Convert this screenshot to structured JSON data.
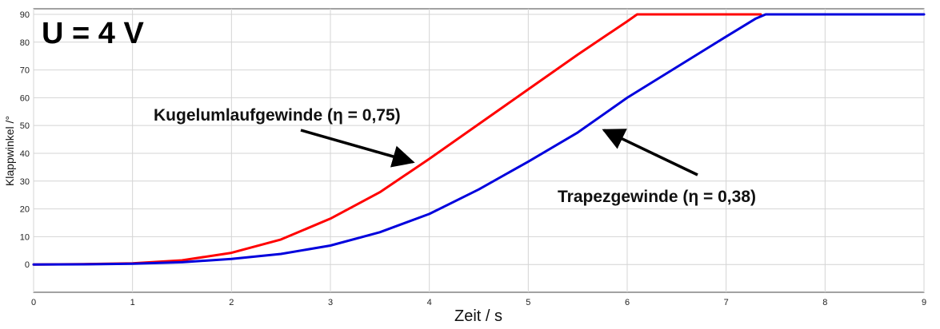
{
  "chart_data": {
    "type": "line",
    "title": "U = 4 V",
    "xlabel": "Zeit / s",
    "ylabel": "Klappwinkel /°",
    "xlim": [
      0,
      9
    ],
    "ylim": [
      -10,
      92
    ],
    "xticks": [
      0,
      1,
      2,
      3,
      4,
      5,
      6,
      7,
      8,
      9
    ],
    "yticks": [
      0,
      10,
      20,
      30,
      40,
      50,
      60,
      70,
      80,
      90
    ],
    "grid": true,
    "series": [
      {
        "name": "Kugelumlaufgewinde (η = 0,75)",
        "color": "#ff0000",
        "x": [
          0,
          0.5,
          1.0,
          1.5,
          2.0,
          2.5,
          3.0,
          3.5,
          4.0,
          4.5,
          5.0,
          5.5,
          6.0,
          6.1,
          7.0,
          7.35
        ],
        "y": [
          0,
          0.1,
          0.4,
          1.5,
          4.2,
          9,
          16.5,
          26,
          38,
          50.5,
          63,
          75.5,
          87.5,
          90,
          90,
          90
        ]
      },
      {
        "name": "Trapezgewinde (η = 0,38)",
        "color": "#0000dd",
        "x": [
          0,
          0.5,
          1.0,
          1.5,
          2.0,
          2.5,
          3.0,
          3.5,
          4.0,
          4.5,
          5.0,
          5.5,
          6.0,
          6.5,
          7.0,
          7.3,
          7.4,
          8.0,
          9.0
        ],
        "y": [
          0,
          0.05,
          0.25,
          0.8,
          2,
          3.8,
          6.8,
          11.6,
          18.2,
          27,
          37,
          47.5,
          60,
          71,
          82,
          88.5,
          90,
          90,
          90
        ]
      }
    ],
    "annotations": [
      {
        "text": "Kugelumlaufgewinde (η = 0,75)",
        "arrow_to": [
          3.85,
          39
        ]
      },
      {
        "text": "Trapezgewinde (η = 0,38)",
        "arrow_to": [
          5.75,
          50.5
        ]
      }
    ]
  }
}
